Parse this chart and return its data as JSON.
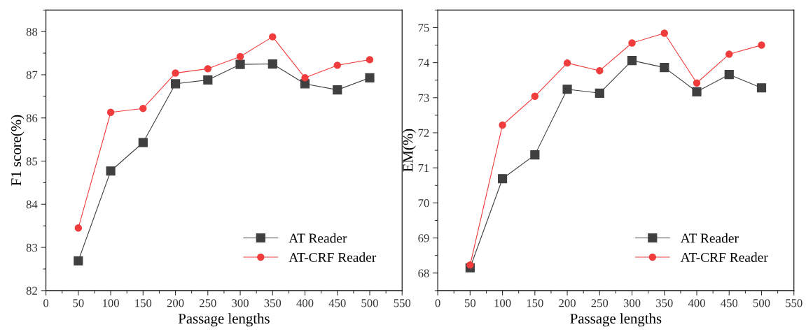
{
  "chart_data": [
    {
      "type": "line",
      "xlabel": "Passage lengths",
      "ylabel": "F1 score(%)",
      "x": [
        50,
        100,
        150,
        200,
        250,
        300,
        350,
        400,
        450,
        500
      ],
      "series": [
        {
          "name": "AT Reader",
          "color": "#404040",
          "marker": "square",
          "values": [
            82.69,
            84.77,
            85.43,
            86.79,
            86.88,
            87.24,
            87.25,
            86.79,
            86.65,
            86.93
          ]
        },
        {
          "name": "AT-CRF Reader",
          "color": "#f03c3c",
          "marker": "circle",
          "values": [
            83.45,
            86.13,
            86.22,
            87.04,
            87.14,
            87.42,
            87.88,
            86.93,
            87.22,
            87.35
          ]
        }
      ],
      "xlim": [
        0,
        550
      ],
      "xticks": [
        0,
        50,
        100,
        150,
        200,
        250,
        300,
        350,
        400,
        450,
        500,
        550
      ],
      "ylim": [
        82,
        88.5
      ],
      "yticks": [
        82,
        83,
        84,
        85,
        86,
        87,
        88
      ],
      "legend": "lower right",
      "grid": false
    },
    {
      "type": "line",
      "xlabel": "Passage lengths",
      "ylabel": "EM(%)",
      "x": [
        50,
        100,
        150,
        200,
        250,
        300,
        350,
        400,
        450,
        500
      ],
      "series": [
        {
          "name": "AT Reader",
          "color": "#404040",
          "marker": "square",
          "values": [
            68.15,
            70.69,
            71.37,
            73.24,
            73.13,
            74.06,
            73.86,
            73.17,
            73.66,
            73.28
          ]
        },
        {
          "name": "AT-CRF Reader",
          "color": "#f03c3c",
          "marker": "circle",
          "values": [
            68.23,
            72.22,
            73.04,
            73.99,
            73.77,
            74.56,
            74.84,
            73.42,
            74.24,
            74.5
          ]
        }
      ],
      "xlim": [
        0,
        550
      ],
      "xticks": [
        0,
        50,
        100,
        150,
        200,
        250,
        300,
        350,
        400,
        450,
        500,
        550
      ],
      "ylim": [
        67.5,
        75.5
      ],
      "yticks": [
        68,
        69,
        70,
        71,
        72,
        73,
        74,
        75
      ],
      "legend": "lower right",
      "grid": false
    }
  ]
}
